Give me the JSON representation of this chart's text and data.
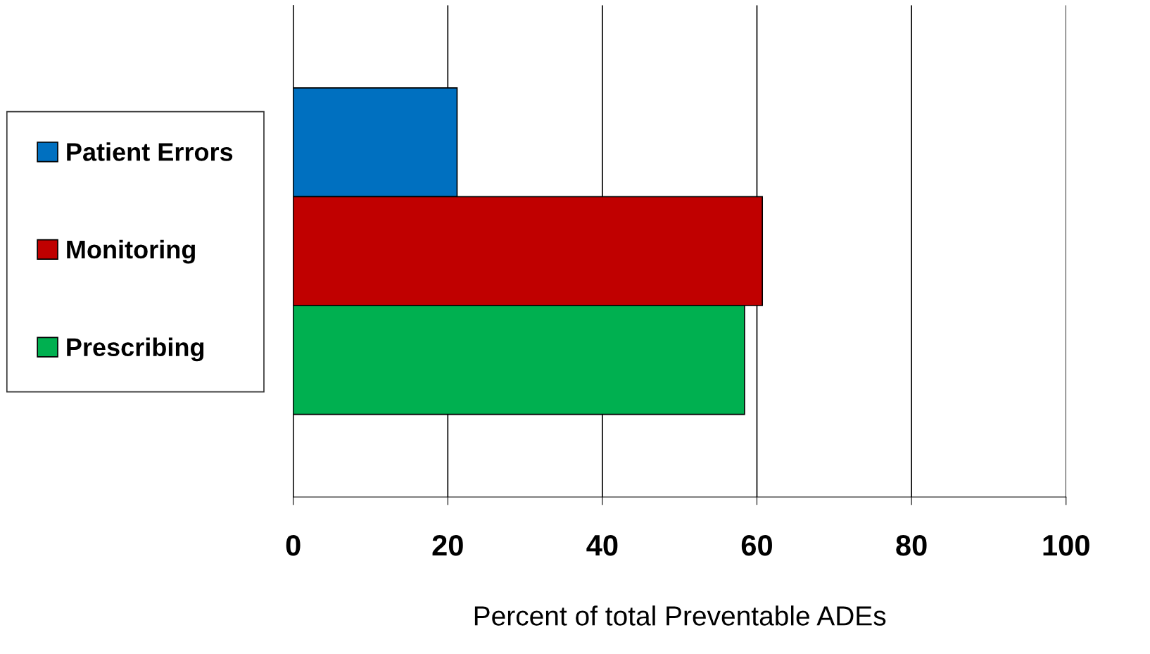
{
  "chart_data": {
    "type": "bar",
    "orientation": "horizontal",
    "categories": [
      null,
      null,
      null
    ],
    "series": [
      {
        "name": "Patient Errors",
        "color": "#0070c0",
        "values": [
          21.2,
          null,
          null
        ]
      },
      {
        "name": "Monitoring",
        "color": "#c00000",
        "values": [
          null,
          60.7,
          null
        ]
      },
      {
        "name": "Prescribing",
        "color": "#00b050",
        "values": [
          null,
          null,
          58.4
        ]
      }
    ],
    "xlabel": "Percent of total Preventable ADEs",
    "xlim": [
      0,
      100
    ],
    "xticks": [
      0,
      20,
      40,
      60,
      80,
      100
    ],
    "grid": "x",
    "legend": "left",
    "tick_labels": "x"
  }
}
